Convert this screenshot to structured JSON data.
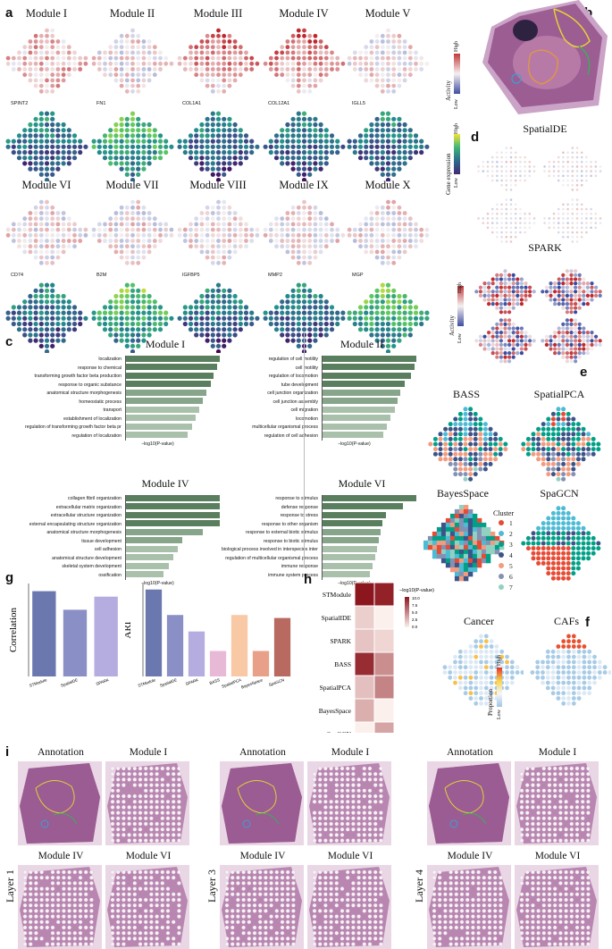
{
  "panels": {
    "a": "a",
    "b": "b",
    "c": "c",
    "d": "d",
    "e": "e",
    "f": "f",
    "g": "g",
    "h": "h",
    "i": "i"
  },
  "panel_a": {
    "modules": [
      {
        "name": "Module I",
        "gene": "SPINT2"
      },
      {
        "name": "Module II",
        "gene": "FN1"
      },
      {
        "name": "Module III",
        "gene": "COL1A1"
      },
      {
        "name": "Module IV",
        "gene": "COL12A1"
      },
      {
        "name": "Module V",
        "gene": "IGLL5"
      },
      {
        "name": "Module VI",
        "gene": "CD74"
      },
      {
        "name": "Module VII",
        "gene": "B2M"
      },
      {
        "name": "Module VIII",
        "gene": "IGFBP5"
      },
      {
        "name": "Module IX",
        "gene": "MMP2"
      },
      {
        "name": "Module X",
        "gene": "MGP"
      }
    ],
    "activity_legend": {
      "title": "Activity",
      "high": "High",
      "low": "Low"
    },
    "expression_legend": {
      "title": "Gene expression",
      "high": "High",
      "low": "Low"
    }
  },
  "panel_c": {
    "axis_label": "−log10(P-value)",
    "groups": [
      {
        "title": "Module I",
        "terms": [
          "localization",
          "response to chemical",
          "transforming growth factor beta production",
          "response to organic substance",
          "anatomical structure morphogenesis",
          "homeostatic process",
          "transport",
          "establishment of localization",
          "regulation of transforming growth factor beta production",
          "regulation of localization"
        ],
        "values": [
          1.0,
          0.97,
          0.93,
          0.9,
          0.86,
          0.82,
          0.78,
          0.74,
          0.7,
          0.66
        ]
      },
      {
        "title": "Module II",
        "terms": [
          "regulation of cell motility",
          "cell motility",
          "regulation of locomotion",
          "tube development",
          "cell junction organization",
          "cell junction assembly",
          "cell migration",
          "locomotion",
          "multicellular organismal process",
          "regulation of cell adhesion"
        ],
        "values": [
          1.0,
          0.98,
          0.94,
          0.88,
          0.83,
          0.8,
          0.77,
          0.72,
          0.69,
          0.65
        ]
      },
      {
        "title": "Module IV",
        "terms": [
          "collagen fibril organization",
          "extracellular matrix organization",
          "extracellular structure organization",
          "external encapsulating structure organization",
          "anatomical structure morphogenesis",
          "tissue development",
          "cell adhesion",
          "anatomical structure development",
          "skeletal system development",
          "ossification"
        ],
        "values": [
          1.0,
          1.0,
          1.0,
          1.0,
          0.82,
          0.6,
          0.55,
          0.5,
          0.46,
          0.4
        ]
      },
      {
        "title": "Module VI",
        "terms": [
          "response to stimulus",
          "defense response",
          "response to stress",
          "response to other organism",
          "response to external biotic stimulus",
          "response to biotic stimulus",
          "biological process involved in interspecies interaction between organisms",
          "regulation of multicellular organismal process",
          "immune response",
          "immune system process"
        ],
        "values": [
          1.0,
          0.86,
          0.68,
          0.64,
          0.62,
          0.6,
          0.58,
          0.56,
          0.53,
          0.5
        ]
      }
    ]
  },
  "panel_d": {
    "spatialde": "SpatialDE",
    "spark": "SPARK",
    "legend": {
      "title": "Activity",
      "high": "High",
      "low": "Low"
    }
  },
  "panel_e": {
    "methods": [
      "BASS",
      "SpatialPCA",
      "BayesSpace",
      "SpaGCN"
    ],
    "cluster_title": "Cluster",
    "clusters": [
      "1",
      "2",
      "3",
      "4",
      "5",
      "6",
      "7"
    ],
    "cluster_colors": [
      "#e64b35",
      "#4dbbd5",
      "#00a087",
      "#3c5488",
      "#f39b7f",
      "#8491b4",
      "#91d1c2"
    ]
  },
  "panel_f": {
    "titles": [
      "Cancer",
      "CAFs"
    ],
    "legend": {
      "title": "Proportion",
      "high": "High",
      "low": "Low"
    }
  },
  "chart_data": [
    {
      "type": "bar",
      "title": "",
      "ylabel": "Correlation",
      "xlabel": "",
      "categories": [
        "STModule",
        "SpatialDE",
        "SPARK"
      ],
      "values": [
        0.78,
        0.61,
        0.73
      ],
      "ylim": [
        0,
        0.85
      ],
      "colors": [
        "#6b78b0",
        "#8a90c6",
        "#b5ade0"
      ]
    },
    {
      "type": "bar",
      "title": "",
      "ylabel": "ARI",
      "xlabel": "",
      "categories": [
        "STModule",
        "SpatialDE",
        "SPARK",
        "BASS",
        "SpatialPCA",
        "BayesSpace",
        "SpaGCN"
      ],
      "values": [
        0.58,
        0.41,
        0.3,
        0.17,
        0.41,
        0.17,
        0.39
      ],
      "ylim": [
        0,
        0.62
      ],
      "colors": [
        "#6b78b0",
        "#8a90c6",
        "#b5ade0",
        "#e8b9d6",
        "#f8c9a4",
        "#e9a088",
        "#b86a60"
      ]
    },
    {
      "type": "heatmap",
      "title": "",
      "rows": [
        "STModule",
        "SpatialIDE",
        "SPARK",
        "BASS",
        "SpatialPCA",
        "BayesSpace",
        "SpaGCN"
      ],
      "columns": [
        "Cancer",
        "CAFs"
      ],
      "values": [
        [
          10,
          9.5
        ],
        [
          1.5,
          0
        ],
        [
          2,
          1.2
        ],
        [
          9,
          4.5
        ],
        [
          2.2,
          5
        ],
        [
          3,
          0
        ],
        [
          0,
          3.5
        ]
      ],
      "legend_title": "−log10(P-value)",
      "legend_ticks": [
        "10.0",
        "7.5",
        "5.0",
        "2.5",
        "0.0"
      ]
    }
  ],
  "panel_i": {
    "layers": [
      {
        "label": "Layer 1",
        "annotation": "Annotation",
        "m1": "Module I",
        "m4": "Module IV",
        "m6": "Module VI"
      },
      {
        "label": "Layer 3",
        "annotation": "Annotation",
        "m1": "Module I",
        "m4": "Module IV",
        "m6": "Module VI"
      },
      {
        "label": "Layer 4",
        "annotation": "Annotation",
        "m1": "Module I",
        "m4": "Module IV",
        "m6": "Module VI"
      }
    ]
  }
}
